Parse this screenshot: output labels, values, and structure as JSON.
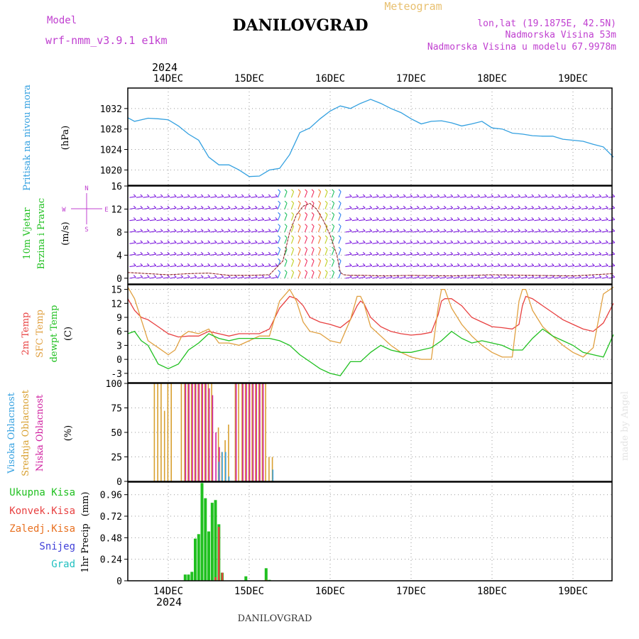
{
  "header": {
    "model_label": "Model",
    "model_name": "wrf-nmm_v3.9.1  e1km",
    "title": "DANILOVGRAD",
    "product": "Meteogram",
    "lonlat": "lon,lat (19.1875E, 42.5N)",
    "elevation": "Nadmorska Visina 53m",
    "model_elevation": "Nadmorska Visina u modelu 67.9978m"
  },
  "footer": {
    "station": "DANILOVGRAD",
    "watermark": "made by Angel"
  },
  "time_axis": {
    "year": "2024",
    "day_labels": [
      "14DEC",
      "15DEC",
      "16DEC",
      "17DEC",
      "18DEC",
      "19DEC"
    ]
  },
  "colors": {
    "pressure": "#33a0e0",
    "temp2m": "#e84040",
    "sfc_temp": "#e0a040",
    "dewpoint": "#20c020",
    "high_cloud": "#33a0e0",
    "mid_cloud": "#d8a030",
    "low_cloud": "#d020a0",
    "total_precip": "#20c020",
    "conv_precip": "#e84040",
    "frozen_precip": "#e87020",
    "snow": "#4040d8",
    "hail": "#20c0c0",
    "wind_label": "#20c020",
    "wind_dir_label": "#c040d0",
    "barb_calm": "#8020e0"
  },
  "chart_data": [
    {
      "type": "line",
      "title": "",
      "ylabel": "Pritisak na nivou mora",
      "unit": "(hPa)",
      "ylim": [
        1017,
        1036
      ],
      "yticks": [
        1020,
        1024,
        1028,
        1032
      ],
      "x_unit": "hours since 13DEC 12:00",
      "series": [
        {
          "name": "Pritisak na nivou mora",
          "color_key": "pressure",
          "x": [
            0,
            2,
            4,
            6,
            9,
            12,
            15,
            18,
            21,
            24,
            27,
            30,
            33,
            36,
            39,
            42,
            45,
            48,
            51,
            54,
            57,
            60,
            63,
            66,
            69,
            72,
            75,
            78,
            81,
            84,
            87,
            90,
            93,
            96,
            99,
            102,
            105,
            108,
            111,
            114,
            117,
            120,
            123,
            126,
            129,
            132,
            135,
            138,
            141,
            144
          ],
          "y": [
            1030.2,
            1029.5,
            1029.8,
            1030.1,
            1030.0,
            1029.8,
            1028.6,
            1027.0,
            1025.8,
            1022.5,
            1021.0,
            1021.0,
            1020.0,
            1018.7,
            1018.8,
            1020.0,
            1020.3,
            1023.0,
            1027.3,
            1028.2,
            1030.0,
            1031.5,
            1032.5,
            1032.0,
            1033.0,
            1033.8,
            1033.0,
            1032.0,
            1031.2,
            1030.0,
            1029.0,
            1029.5,
            1029.6,
            1029.2,
            1028.6,
            1029.0,
            1029.5,
            1028.2,
            1028.0,
            1027.2,
            1027.0,
            1026.7,
            1026.6,
            1026.6,
            1026.0,
            1025.8,
            1025.6,
            1025.0,
            1024.5,
            1022.5
          ]
        }
      ]
    },
    {
      "type": "line",
      "title": "",
      "ylabel": "10m Vjetar Brzina i Pravac",
      "unit": "(m/s)",
      "ylim": [
        -1,
        16
      ],
      "yticks": [
        0,
        4,
        8,
        12,
        16
      ],
      "direction_key": [
        "N",
        "E",
        "S",
        "W"
      ],
      "x_unit": "hours since 13DEC 12:00",
      "series": [
        {
          "name": "10m Vjetar",
          "x": [
            0,
            6,
            12,
            18,
            24,
            30,
            36,
            42,
            46,
            48,
            50,
            52,
            54,
            56,
            58,
            60,
            62,
            63,
            64,
            66,
            70,
            76,
            84,
            96,
            108,
            120,
            132,
            144
          ],
          "y": [
            1,
            0.8,
            0.6,
            0.8,
            0.9,
            0.5,
            0.5,
            0.6,
            3,
            8,
            11,
            12.5,
            13,
            12,
            10,
            7.5,
            4,
            1,
            0.6,
            0.5,
            0.5,
            0.4,
            0.5,
            0.4,
            0.6,
            0.5,
            0.4,
            0.8
          ]
        }
      ]
    },
    {
      "type": "line",
      "title": "",
      "ylabel": "2m Temp / SFC Temp / dewpt Temp",
      "unit": "(C)",
      "ylim": [
        -5,
        16
      ],
      "yticks": [
        -3,
        0,
        3,
        6,
        9,
        12,
        15
      ],
      "x_unit": "hours since 13DEC 12:00",
      "series": [
        {
          "name": "2m Temp",
          "color_key": "temp2m",
          "x": [
            0,
            2,
            4,
            6,
            9,
            12,
            15,
            18,
            21,
            24,
            27,
            30,
            33,
            36,
            39,
            42,
            45,
            48,
            50,
            52,
            54,
            57,
            60,
            63,
            66,
            68,
            69,
            70,
            72,
            75,
            78,
            81,
            84,
            87,
            90,
            92,
            93,
            94,
            96,
            99,
            102,
            105,
            108,
            111,
            114,
            116,
            117,
            118,
            120,
            123,
            126,
            129,
            132,
            135,
            138,
            141,
            144
          ],
          "y": [
            13,
            10.5,
            9,
            8.5,
            7,
            5.5,
            4.8,
            5,
            5,
            6,
            5.5,
            5,
            5.5,
            5.5,
            5.5,
            6.5,
            11,
            13.5,
            13,
            11.5,
            9,
            8,
            7.5,
            6.8,
            8.5,
            11.5,
            12.5,
            12,
            9,
            7,
            6,
            5.5,
            5.2,
            5.4,
            5.8,
            9.5,
            12.5,
            13,
            13,
            11.5,
            9,
            8,
            7,
            6.8,
            6.5,
            7.5,
            11.5,
            13.5,
            13,
            11.5,
            10,
            8.5,
            7.5,
            6.5,
            6,
            7.8,
            12
          ]
        },
        {
          "name": "SFC Temp",
          "color_key": "sfc_temp",
          "x": [
            0,
            2,
            4,
            6,
            9,
            12,
            14,
            16,
            18,
            21,
            24,
            27,
            30,
            33,
            36,
            39,
            42,
            45,
            48,
            50,
            52,
            54,
            57,
            60,
            63,
            66,
            68,
            69,
            70,
            72,
            75,
            78,
            81,
            84,
            87,
            90,
            92,
            93,
            94,
            96,
            99,
            102,
            105,
            108,
            111,
            114,
            116,
            117,
            118,
            120,
            123,
            126,
            129,
            132,
            135,
            138,
            141,
            144
          ],
          "y": [
            15.5,
            13,
            8.5,
            4,
            2.5,
            1,
            2,
            5,
            6,
            5.5,
            6.5,
            3.5,
            3.5,
            3,
            4,
            5,
            5,
            12.5,
            15,
            12.5,
            8,
            6,
            5.5,
            4,
            3.5,
            8.5,
            13.5,
            13.5,
            12,
            7,
            5,
            3,
            1.5,
            0.5,
            0,
            0,
            11,
            15,
            15,
            11,
            7.5,
            5,
            3,
            1.5,
            0.5,
            0.5,
            12.5,
            15,
            15,
            10.5,
            7,
            5,
            3,
            1.5,
            0.5,
            2.5,
            14,
            15.5
          ]
        },
        {
          "name": "dewpt Temp",
          "color_key": "dewpoint",
          "x": [
            0,
            2,
            4,
            6,
            9,
            12,
            15,
            18,
            21,
            24,
            27,
            30,
            33,
            36,
            39,
            42,
            45,
            48,
            51,
            54,
            57,
            60,
            63,
            66,
            69,
            72,
            75,
            78,
            81,
            84,
            87,
            90,
            93,
            96,
            99,
            102,
            105,
            108,
            111,
            114,
            117,
            120,
            123,
            126,
            129,
            132,
            135,
            138,
            141,
            144
          ],
          "y": [
            5.5,
            6,
            4,
            3,
            -1,
            -2,
            -1,
            2,
            3.5,
            5.5,
            4.5,
            4,
            4.5,
            4.5,
            4.5,
            4.5,
            4,
            3,
            1,
            -0.5,
            -2,
            -3,
            -3.5,
            -0.5,
            -0.5,
            1.5,
            3,
            2,
            1.5,
            1.5,
            2,
            2.5,
            4,
            6,
            4.5,
            3.5,
            4,
            3.5,
            3,
            2,
            2,
            4.5,
            6.5,
            5,
            4,
            3,
            1.5,
            1,
            0.5,
            5.3
          ]
        }
      ]
    },
    {
      "type": "bar",
      "title": "",
      "ylabel": "Visoka Oblacnost / Srednja Oblacnost / Niska Oblacnost",
      "unit": "(%)",
      "ylim": [
        0,
        100
      ],
      "yticks": [
        0,
        25,
        50,
        75,
        100
      ],
      "x_unit": "hours since 13DEC 12:00",
      "series": [
        {
          "name": "Srednja Oblacnost",
          "color_key": "mid_cloud",
          "x": [
            8,
            9,
            10,
            11,
            12,
            13,
            16,
            17,
            18,
            19,
            20,
            21,
            22,
            23,
            24,
            25,
            27,
            28,
            29,
            30,
            32,
            33,
            34,
            35,
            36,
            37,
            38,
            39,
            40,
            41,
            42,
            43
          ],
          "y": [
            100,
            100,
            100,
            72,
            100,
            100,
            100,
            100,
            100,
            100,
            100,
            100,
            100,
            100,
            100,
            100,
            55,
            30,
            42,
            58,
            100,
            100,
            100,
            100,
            100,
            100,
            100,
            100,
            100,
            100,
            25,
            25
          ]
        },
        {
          "name": "Niska Oblacnost",
          "color_key": "low_cloud",
          "x": [
            17,
            18,
            19,
            20,
            21,
            22,
            23,
            24,
            25,
            26,
            27,
            32,
            34,
            35,
            36,
            37,
            38,
            39,
            40
          ],
          "y": [
            100,
            100,
            100,
            100,
            100,
            100,
            100,
            95,
            88,
            50,
            35,
            100,
            100,
            100,
            100,
            100,
            100,
            100,
            100
          ]
        },
        {
          "name": "Visoka Oblacnost",
          "color_key": "high_cloud",
          "x": [
            27,
            28,
            29,
            30,
            43
          ],
          "y": [
            20,
            30,
            30,
            5,
            12
          ]
        }
      ]
    },
    {
      "type": "bar",
      "title": "",
      "ylabel": "1hr Precip",
      "unit": "(mm)",
      "ylim": [
        0,
        1.1
      ],
      "yticks": [
        0,
        0.24,
        0.48,
        0.72,
        0.96
      ],
      "legend": [
        "Ukupna Kisa",
        "Konvek.Kisa",
        "Zaledj.Kisa",
        "Snijeg",
        "Grad"
      ],
      "x_unit": "hours since 13DEC 12:00",
      "series": [
        {
          "name": "Ukupna Kisa",
          "color_key": "total_precip",
          "x": [
            17,
            18,
            19,
            20,
            21,
            22,
            23,
            24,
            25,
            26,
            27,
            28,
            35,
            41,
            42
          ],
          "y": [
            0.07,
            0.07,
            0.1,
            0.47,
            0.52,
            1.09,
            0.92,
            0.55,
            0.87,
            0.9,
            0.63,
            0.09,
            0.05,
            0.14,
            0.01
          ]
        },
        {
          "name": "Konvek.Kisa",
          "color_key": "conv_precip",
          "x": [
            26,
            27,
            28
          ],
          "y": [
            0.04,
            0.6,
            0.09
          ]
        },
        {
          "name": "Zaledj.Kisa",
          "color_key": "frozen_precip",
          "x": [
            41
          ],
          "y": [
            0.01
          ]
        }
      ]
    }
  ]
}
